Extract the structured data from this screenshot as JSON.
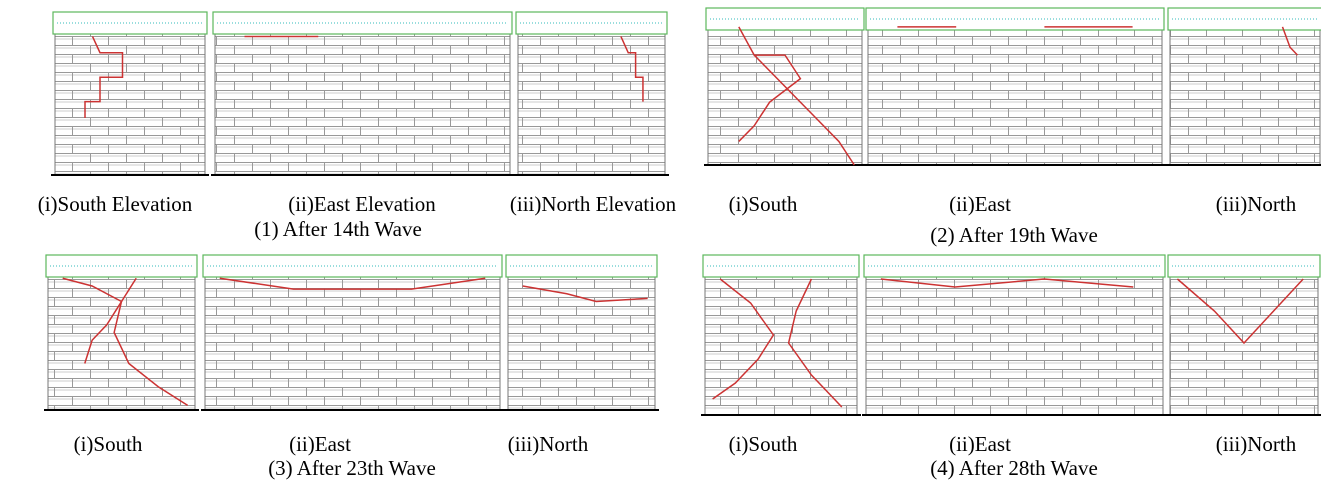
{
  "panels": [
    {
      "caption": "(1) After 14th Wave",
      "labels": [
        "(i)South Elevation",
        "(ii)East Elevation",
        "(iii)North Elevation"
      ]
    },
    {
      "caption": "(2) After 19th Wave",
      "labels": [
        "(i)South",
        "(ii)East",
        "(iii)North"
      ]
    },
    {
      "caption": "(3) After 23th Wave",
      "labels": [
        "(i)South",
        "(ii)East",
        "(iii)North"
      ]
    },
    {
      "caption": "(4) After 28th Wave",
      "labels": [
        "(i)South",
        "(ii)East",
        "(iii)North"
      ]
    }
  ]
}
